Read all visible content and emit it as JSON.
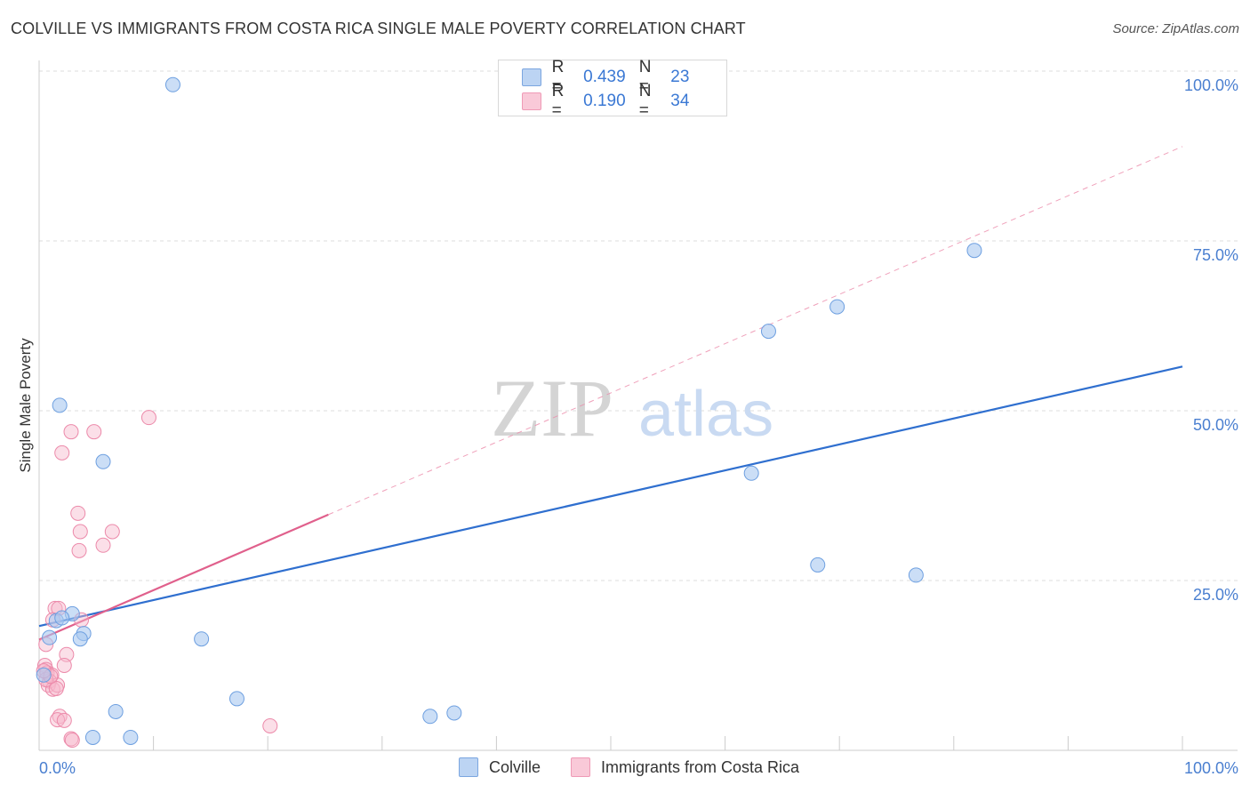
{
  "header": {
    "title": "COLVILLE VS IMMIGRANTS FROM COSTA RICA SINGLE MALE POVERTY CORRELATION CHART",
    "source": "Source: ZipAtlas.com"
  },
  "legend_top": {
    "rows": [
      {
        "r_label": "R =",
        "r_value": "0.439",
        "n_label": "N =",
        "n_value": "23"
      },
      {
        "r_label": "R =",
        "r_value": "0.190",
        "n_label": "N =",
        "n_value": "34"
      }
    ]
  },
  "legend_bottom": {
    "series1": "Colville",
    "series2": "Immigrants from Costa Rica"
  },
  "watermark": {
    "zip": "ZIP",
    "atlas": "atlas"
  },
  "chart_data": {
    "type": "scatter",
    "title": "COLVILLE VS IMMIGRANTS FROM COSTA RICA SINGLE MALE POVERTY CORRELATION CHART",
    "xlabel": "",
    "ylabel": "Single Male Poverty",
    "xlim": [
      0,
      100
    ],
    "ylim": [
      0,
      100
    ],
    "x_tick_labels": [
      "0.0%",
      "100.0%"
    ],
    "y_ticks": [
      25,
      50,
      75,
      100
    ],
    "y_tick_labels": [
      "25.0%",
      "50.0%",
      "75.0%",
      "100.0%"
    ],
    "colors": {
      "colville_fill": "#a9c8f0",
      "colville_stroke": "#6d9fe0",
      "colville_line": "#2f6fcf",
      "costa_fill": "#f6b8cb",
      "costa_stroke": "#ec8aaa",
      "costa_line": "#e0608c",
      "grid": "#dddddd",
      "tick": "#4a7fd0"
    },
    "series": [
      {
        "name": "Colville",
        "R": 0.439,
        "N": 23,
        "points": [
          [
            11.7,
            98.0
          ],
          [
            1.8,
            50.8
          ],
          [
            5.6,
            42.5
          ],
          [
            63.8,
            61.7
          ],
          [
            69.8,
            65.3
          ],
          [
            81.8,
            73.6
          ],
          [
            62.3,
            40.8
          ],
          [
            68.1,
            27.3
          ],
          [
            76.7,
            25.8
          ],
          [
            2.9,
            20.1
          ],
          [
            1.5,
            19.1
          ],
          [
            3.9,
            17.2
          ],
          [
            3.6,
            16.4
          ],
          [
            14.2,
            16.4
          ],
          [
            0.9,
            16.6
          ],
          [
            0.4,
            11.1
          ],
          [
            17.3,
            7.6
          ],
          [
            6.7,
            5.7
          ],
          [
            34.2,
            5.0
          ],
          [
            36.3,
            5.5
          ],
          [
            4.7,
            1.9
          ],
          [
            8.0,
            1.9
          ],
          [
            2.0,
            19.5
          ]
        ],
        "trend": {
          "x": [
            0,
            100
          ],
          "y": [
            18.3,
            56.5
          ],
          "style": "solid"
        }
      },
      {
        "name": "Immigrants from Costa Rica",
        "R": 0.19,
        "N": 34,
        "points": [
          [
            9.6,
            49.0
          ],
          [
            2.8,
            46.9
          ],
          [
            4.8,
            46.9
          ],
          [
            2.0,
            43.8
          ],
          [
            3.4,
            34.9
          ],
          [
            3.6,
            32.2
          ],
          [
            6.4,
            32.2
          ],
          [
            3.5,
            29.4
          ],
          [
            5.6,
            30.2
          ],
          [
            1.4,
            20.9
          ],
          [
            1.7,
            20.9
          ],
          [
            1.2,
            19.2
          ],
          [
            3.7,
            19.2
          ],
          [
            2.4,
            14.1
          ],
          [
            2.2,
            12.5
          ],
          [
            0.5,
            12.5
          ],
          [
            0.6,
            11.9
          ],
          [
            0.7,
            11.4
          ],
          [
            1.1,
            11.1
          ],
          [
            0.9,
            10.2
          ],
          [
            0.8,
            9.6
          ],
          [
            1.2,
            9.0
          ],
          [
            1.6,
            9.6
          ],
          [
            1.5,
            9.1
          ],
          [
            0.6,
            15.6
          ],
          [
            1.8,
            5.0
          ],
          [
            1.6,
            4.5
          ],
          [
            2.2,
            4.4
          ],
          [
            20.2,
            3.6
          ],
          [
            2.8,
            1.7
          ],
          [
            2.9,
            1.5
          ],
          [
            0.6,
            10.4
          ],
          [
            1.0,
            10.9
          ],
          [
            0.4,
            11.7
          ]
        ],
        "trend": {
          "x": [
            0,
            25.3
          ],
          "y": [
            16.3,
            34.7
          ],
          "style": "solid"
        },
        "trend_extended": {
          "x": [
            25.3,
            100
          ],
          "y": [
            34.7,
            88.9
          ],
          "style": "dashed"
        }
      }
    ]
  }
}
